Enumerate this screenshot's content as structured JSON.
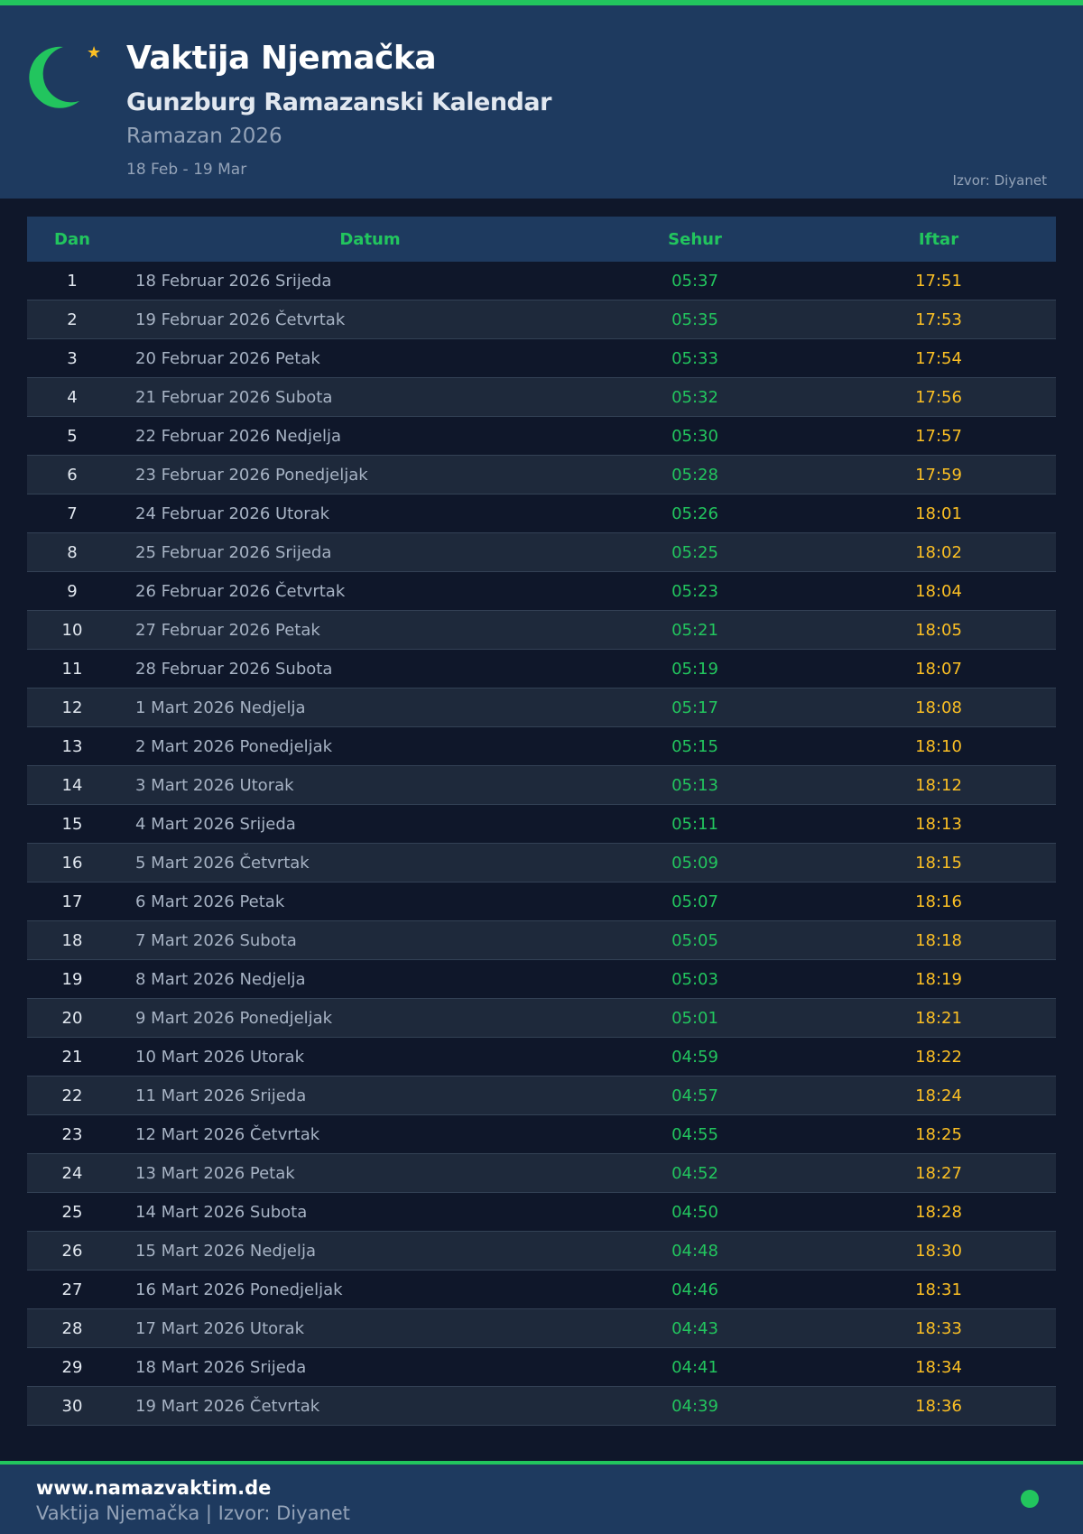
{
  "header": {
    "title": "Vaktija Njemačka",
    "subtitle": "Gunzburg Ramazanski Kalendar",
    "season": "Ramazan 2026",
    "range": "18 Feb - 19 Mar",
    "source": "Izvor: Diyanet",
    "icons": [
      "crescent-moon-icon",
      "star-icon"
    ]
  },
  "colors": {
    "accent": "#22c55e",
    "iftar": "#fbbf24",
    "header_bg": "#1e3a5f",
    "page_bg": "#0f172a"
  },
  "table": {
    "columns": [
      "Dan",
      "Datum",
      "Sehur",
      "Iftar"
    ],
    "rows": [
      [
        "1",
        "18 Februar 2026 Srijeda",
        "05:37",
        "17:51"
      ],
      [
        "2",
        "19 Februar 2026 Četvrtak",
        "05:35",
        "17:53"
      ],
      [
        "3",
        "20 Februar 2026 Petak",
        "05:33",
        "17:54"
      ],
      [
        "4",
        "21 Februar 2026 Subota",
        "05:32",
        "17:56"
      ],
      [
        "5",
        "22 Februar 2026 Nedjelja",
        "05:30",
        "17:57"
      ],
      [
        "6",
        "23 Februar 2026 Ponedjeljak",
        "05:28",
        "17:59"
      ],
      [
        "7",
        "24 Februar 2026 Utorak",
        "05:26",
        "18:01"
      ],
      [
        "8",
        "25 Februar 2026 Srijeda",
        "05:25",
        "18:02"
      ],
      [
        "9",
        "26 Februar 2026 Četvrtak",
        "05:23",
        "18:04"
      ],
      [
        "10",
        "27 Februar 2026 Petak",
        "05:21",
        "18:05"
      ],
      [
        "11",
        "28 Februar 2026 Subota",
        "05:19",
        "18:07"
      ],
      [
        "12",
        "1 Mart 2026 Nedjelja",
        "05:17",
        "18:08"
      ],
      [
        "13",
        "2 Mart 2026 Ponedjeljak",
        "05:15",
        "18:10"
      ],
      [
        "14",
        "3 Mart 2026 Utorak",
        "05:13",
        "18:12"
      ],
      [
        "15",
        "4 Mart 2026 Srijeda",
        "05:11",
        "18:13"
      ],
      [
        "16",
        "5 Mart 2026 Četvrtak",
        "05:09",
        "18:15"
      ],
      [
        "17",
        "6 Mart 2026 Petak",
        "05:07",
        "18:16"
      ],
      [
        "18",
        "7 Mart 2026 Subota",
        "05:05",
        "18:18"
      ],
      [
        "19",
        "8 Mart 2026 Nedjelja",
        "05:03",
        "18:19"
      ],
      [
        "20",
        "9 Mart 2026 Ponedjeljak",
        "05:01",
        "18:21"
      ],
      [
        "21",
        "10 Mart 2026 Utorak",
        "04:59",
        "18:22"
      ],
      [
        "22",
        "11 Mart 2026 Srijeda",
        "04:57",
        "18:24"
      ],
      [
        "23",
        "12 Mart 2026 Četvrtak",
        "04:55",
        "18:25"
      ],
      [
        "24",
        "13 Mart 2026 Petak",
        "04:52",
        "18:27"
      ],
      [
        "25",
        "14 Mart 2026 Subota",
        "04:50",
        "18:28"
      ],
      [
        "26",
        "15 Mart 2026 Nedjelja",
        "04:48",
        "18:30"
      ],
      [
        "27",
        "16 Mart 2026 Ponedjeljak",
        "04:46",
        "18:31"
      ],
      [
        "28",
        "17 Mart 2026 Utorak",
        "04:43",
        "18:33"
      ],
      [
        "29",
        "18 Mart 2026 Srijeda",
        "04:41",
        "18:34"
      ],
      [
        "30",
        "19 Mart 2026 Četvrtak",
        "04:39",
        "18:36"
      ]
    ]
  },
  "footer": {
    "site": "www.namazvaktim.de",
    "subtitle": "Vaktija Njemačka | Izvor: Diyanet",
    "status_icon": "status-dot-icon"
  }
}
